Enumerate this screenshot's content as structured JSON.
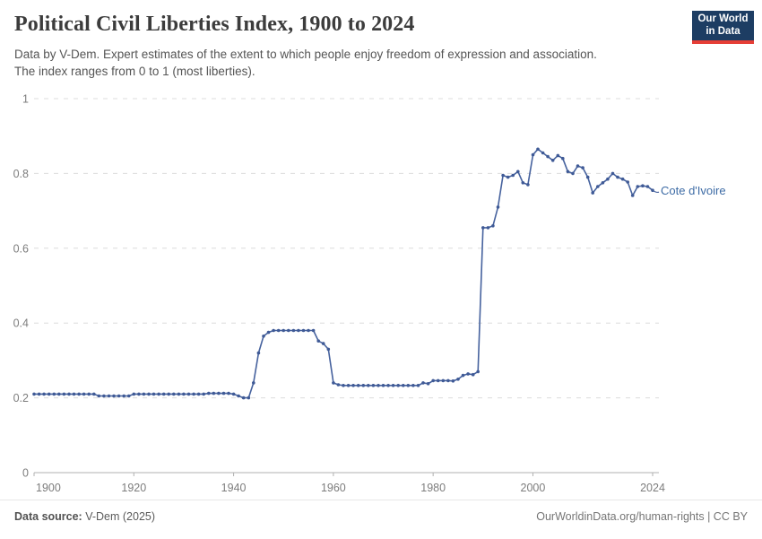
{
  "header": {
    "title": "Political Civil Liberties Index, 1900 to 2024",
    "subtitle_lines": [
      "Data by V-Dem. Expert estimates of the extent to which people enjoy freedom of expression and association.",
      "The index ranges from 0 to 1 (most liberties)."
    ],
    "logo": {
      "line1": "Our World",
      "line2": "in Data",
      "bg_color": "#1d3d63",
      "accent_color": "#e63e36"
    }
  },
  "footer": {
    "source_label": "Data source:",
    "source_value": " V-Dem (2025)",
    "right_text": "OurWorldinData.org/human-rights | CC BY"
  },
  "chart_data": {
    "type": "line",
    "title": "Political Civil Liberties Index, 1900 to 2024",
    "xlabel": "",
    "ylabel": "",
    "xlim": [
      1900,
      2024
    ],
    "ylim": [
      0,
      1
    ],
    "x_ticks": [
      1900,
      1920,
      1940,
      1960,
      1980,
      2000,
      2024
    ],
    "y_ticks": [
      0,
      0.2,
      0.4,
      0.6,
      0.8,
      1
    ],
    "grid": "horizontal-dashed",
    "legend_position": "end-of-line-label",
    "colors": {
      "line": "#46629e",
      "marker": "#3f5a96",
      "entity_label": "#3d6ba5",
      "gridline": "#dcdcdc",
      "axis": "#b0b0b0",
      "tick_label": "#7d7d7d"
    },
    "series": [
      {
        "name": "Cote d'Ivoire",
        "start_year": 1900,
        "end_year": 2024,
        "values": [
          0.21,
          0.21,
          0.21,
          0.21,
          0.21,
          0.21,
          0.21,
          0.21,
          0.21,
          0.21,
          0.21,
          0.21,
          0.21,
          0.205,
          0.205,
          0.205,
          0.205,
          0.205,
          0.205,
          0.205,
          0.21,
          0.21,
          0.21,
          0.21,
          0.21,
          0.21,
          0.21,
          0.21,
          0.21,
          0.21,
          0.21,
          0.21,
          0.21,
          0.21,
          0.21,
          0.212,
          0.212,
          0.212,
          0.212,
          0.212,
          0.21,
          0.205,
          0.2,
          0.2,
          0.24,
          0.32,
          0.365,
          0.375,
          0.38,
          0.38,
          0.38,
          0.38,
          0.38,
          0.38,
          0.38,
          0.38,
          0.38,
          0.352,
          0.345,
          0.33,
          0.24,
          0.235,
          0.233,
          0.233,
          0.233,
          0.233,
          0.233,
          0.233,
          0.233,
          0.233,
          0.233,
          0.233,
          0.233,
          0.233,
          0.233,
          0.233,
          0.233,
          0.233,
          0.24,
          0.238,
          0.246,
          0.246,
          0.246,
          0.246,
          0.245,
          0.25,
          0.26,
          0.264,
          0.262,
          0.27,
          0.655,
          0.655,
          0.66,
          0.71,
          0.795,
          0.79,
          0.795,
          0.805,
          0.775,
          0.77,
          0.85,
          0.865,
          0.855,
          0.845,
          0.835,
          0.848,
          0.84,
          0.805,
          0.8,
          0.82,
          0.815,
          0.79,
          0.748,
          0.765,
          0.775,
          0.785,
          0.8,
          0.79,
          0.785,
          0.777,
          0.741,
          0.765,
          0.767,
          0.765,
          0.755
        ]
      }
    ]
  }
}
